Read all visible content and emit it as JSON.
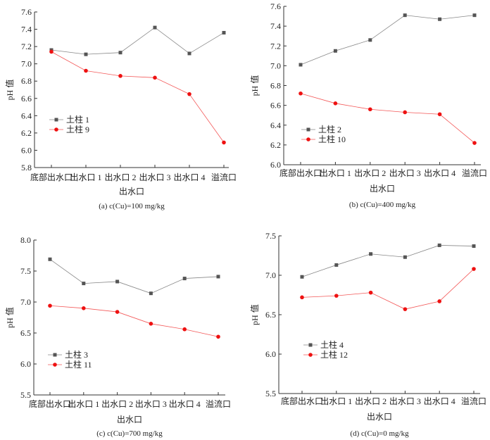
{
  "chart_data": [
    {
      "type": "line",
      "caption": "(a) c(Cu)=100 mg/kg",
      "xlabel": "出水口",
      "ylabel": "pH 值",
      "categories": [
        "底部出水口",
        "出水口 1",
        "出水口 2",
        "出水口 3",
        "出水口 4",
        "溢流口"
      ],
      "ylim": [
        5.8,
        7.6
      ],
      "yticks": [
        "5.8",
        "6.0",
        "6.2",
        "6.4",
        "6.6",
        "6.8",
        "7.0",
        "7.2",
        "7.4",
        "7.6"
      ],
      "legend_placement": "center-left",
      "series": [
        {
          "name": "土柱 1",
          "color": "#555555",
          "marker": "square",
          "values": [
            7.16,
            7.11,
            7.13,
            7.42,
            7.12,
            7.36
          ]
        },
        {
          "name": "土柱 9",
          "color": "#ee1111",
          "marker": "circle",
          "values": [
            7.14,
            6.92,
            6.86,
            6.84,
            6.65,
            6.09
          ]
        }
      ]
    },
    {
      "type": "line",
      "caption": "(b) c(Cu)=400 mg/kg",
      "xlabel": "出水口",
      "ylabel": "pH 值",
      "categories": [
        "底部出水口",
        "出水口 1",
        "出水口 2",
        "出水口 3",
        "出水口 4",
        "溢流口"
      ],
      "ylim": [
        6.0,
        7.6
      ],
      "yticks": [
        "6.0",
        "6.2",
        "6.4",
        "6.6",
        "6.8",
        "7.0",
        "7.2",
        "7.4",
        "7.6"
      ],
      "legend_placement": "lower-left",
      "series": [
        {
          "name": "土柱 2",
          "color": "#555555",
          "marker": "square",
          "values": [
            7.01,
            7.15,
            7.26,
            7.51,
            7.47,
            7.51
          ]
        },
        {
          "name": "土柱 10",
          "color": "#ee1111",
          "marker": "circle",
          "values": [
            6.72,
            6.62,
            6.56,
            6.53,
            6.51,
            6.22
          ]
        }
      ]
    },
    {
      "type": "line",
      "caption": "(c) c(Cu)=700 mg/kg",
      "xlabel": "出水口",
      "ylabel": "pH 值",
      "categories": [
        "底部出水口",
        "出水口 1",
        "出水口 2",
        "出水口 3",
        "出水口 4",
        "溢流口"
      ],
      "ylim": [
        5.5,
        8.0
      ],
      "yticks": [
        "5.5",
        "6.0",
        "6.5",
        "7.0",
        "7.5",
        "8.0"
      ],
      "legend_placement": "lower-left",
      "series": [
        {
          "name": "土柱 3",
          "color": "#555555",
          "marker": "square",
          "values": [
            7.69,
            7.3,
            7.33,
            7.14,
            7.38,
            7.41
          ]
        },
        {
          "name": "土柱 11",
          "color": "#ee1111",
          "marker": "circle",
          "values": [
            6.94,
            6.9,
            6.84,
            6.65,
            6.56,
            6.44
          ]
        }
      ]
    },
    {
      "type": "line",
      "caption": "(d) c(Cu)=0 mg/kg",
      "xlabel": "出水口",
      "ylabel": "pH 值",
      "categories": [
        "底部出水口",
        "出水口 1",
        "出水口 2",
        "出水口 3",
        "出水口 4",
        "溢流口"
      ],
      "ylim": [
        5.5,
        7.5
      ],
      "yticks": [
        "5.5",
        "6.0",
        "6.5",
        "7.0",
        "7.5"
      ],
      "legend_placement": "center-left",
      "series": [
        {
          "name": "土柱 4",
          "color": "#555555",
          "marker": "square",
          "values": [
            6.98,
            7.13,
            7.27,
            7.23,
            7.38,
            7.37
          ]
        },
        {
          "name": "土柱 12",
          "color": "#ee1111",
          "marker": "circle",
          "values": [
            6.72,
            6.74,
            6.78,
            6.57,
            6.67,
            7.08
          ]
        }
      ]
    }
  ]
}
